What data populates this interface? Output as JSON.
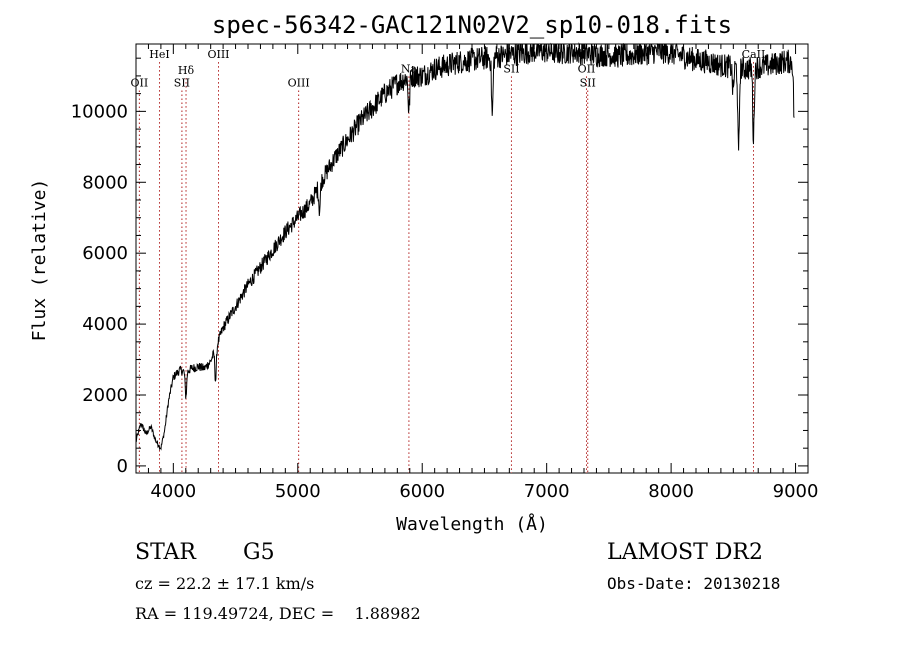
{
  "chart_data": {
    "type": "line",
    "title": "spec-56342-GAC121N02V2_sp10-018.fits",
    "xlabel": "Wavelength (Å)",
    "ylabel": "Flux (relative)",
    "xlim": [
      3700,
      9100
    ],
    "ylim": [
      -200,
      11900
    ],
    "x_ticks": [
      4000,
      5000,
      6000,
      7000,
      8000,
      9000
    ],
    "x_tick_labels": [
      "4000",
      "5000",
      "6000",
      "7000",
      "8000",
      "9000"
    ],
    "y_ticks": [
      0,
      2000,
      4000,
      6000,
      8000,
      10000
    ],
    "y_tick_labels": [
      "0",
      "2000",
      "4000",
      "6000",
      "8000",
      "10000"
    ],
    "grid": false,
    "line_color": "#000000",
    "marker_color": "#b22222",
    "spectrum": {
      "x": [
        3700,
        3740,
        3780,
        3820,
        3860,
        3880,
        3900,
        3930,
        3960,
        4000,
        4050,
        4100,
        4150,
        4200,
        4250,
        4300,
        4350,
        4400,
        4450,
        4500,
        4600,
        4700,
        4800,
        4900,
        5000,
        5100,
        5200,
        5300,
        5400,
        5500,
        5600,
        5700,
        5800,
        5900,
        6000,
        6100,
        6200,
        6300,
        6400,
        6500,
        6600,
        6700,
        6800,
        6900,
        7000,
        7100,
        7200,
        7300,
        7400,
        7500,
        7600,
        7700,
        7800,
        7900,
        8000,
        8100,
        8200,
        8300,
        8400,
        8500,
        8600,
        8700,
        8800,
        8900,
        8990
      ],
      "y": [
        700,
        1200,
        900,
        1100,
        700,
        600,
        500,
        1000,
        1800,
        2500,
        2700,
        2650,
        2750,
        2800,
        2750,
        2950,
        3400,
        3900,
        4200,
        4500,
        5100,
        5600,
        6100,
        6600,
        7000,
        7400,
        8100,
        8700,
        9200,
        9700,
        10100,
        10500,
        10800,
        11000,
        11000,
        11200,
        11300,
        11400,
        11450,
        11500,
        11550,
        11600,
        11650,
        11700,
        11700,
        11650,
        11700,
        11650,
        11600,
        11600,
        11550,
        11600,
        11650,
        11700,
        11650,
        11550,
        11450,
        11400,
        11300,
        11250,
        11200,
        11250,
        11300,
        11400,
        11400
      ]
    },
    "absorption_lines": [
      {
        "x": 4101,
        "depth": 700
      },
      {
        "x": 4340,
        "depth": 900
      },
      {
        "x": 5175,
        "depth": 700
      },
      {
        "x": 5893,
        "depth": 1000
      },
      {
        "x": 6563,
        "depth": 1700
      },
      {
        "x": 8498,
        "depth": 700
      },
      {
        "x": 8542,
        "depth": 2500
      },
      {
        "x": 8662,
        "depth": 2000
      },
      {
        "x": 8990,
        "depth": 1700
      }
    ],
    "line_markers": [
      {
        "label": "OII",
        "x": 3727,
        "label_y": 10700
      },
      {
        "label": "HeI",
        "x": 3889,
        "label_y": 11500
      },
      {
        "label": "Hδ",
        "x": 4102,
        "label_y": 11050
      },
      {
        "label": "SII",
        "x": 4069,
        "label_y": 10700
      },
      {
        "label": "OIII",
        "x": 4363,
        "label_y": 11500
      },
      {
        "label": "OIII",
        "x": 5007,
        "label_y": 10700
      },
      {
        "label": "Na",
        "x": 5893,
        "label_y": 11100
      },
      {
        "label": "SII",
        "x": 6717,
        "label_y": 11100
      },
      {
        "label": "OII",
        "x": 7320,
        "label_y": 11100
      },
      {
        "label": "SII",
        "x": 7330,
        "label_y": 10700
      },
      {
        "label": "CaII",
        "x": 8662,
        "label_y": 11500
      }
    ]
  },
  "info": {
    "object_type": "STAR",
    "subclass": "G5",
    "survey": "LAMOST DR2",
    "redshift": "cz = 22.2 ± 17.1 km/s",
    "obs_date": "Obs-Date: 20130218",
    "coords": "RA = 119.49724, DEC =    1.88982"
  }
}
